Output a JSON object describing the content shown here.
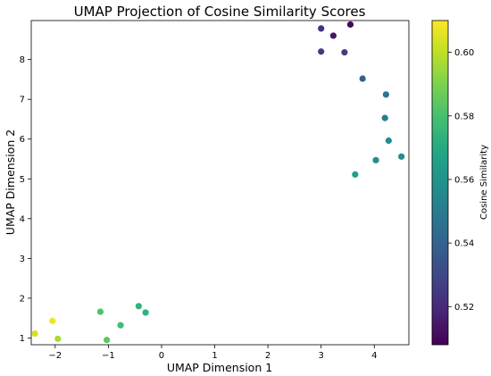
{
  "chart_data": {
    "type": "scatter",
    "title": "UMAP Projection of Cosine Similarity Scores",
    "xlabel": "UMAP Dimension 1",
    "ylabel": "UMAP Dimension 2",
    "xlim": [
      -2.45,
      4.65
    ],
    "ylim": [
      0.83,
      8.98
    ],
    "xticks": [
      -2,
      -1,
      0,
      1,
      2,
      3,
      4
    ],
    "yticks": [
      1,
      2,
      3,
      4,
      5,
      6,
      7,
      8
    ],
    "xtick_labels": [
      "−2",
      "−1",
      "0",
      "1",
      "2",
      "3",
      "4"
    ],
    "ytick_labels": [
      "1",
      "2",
      "3",
      "4",
      "5",
      "6",
      "7",
      "8"
    ],
    "grid": false,
    "colormap": "viridis",
    "colorbar": {
      "label": "Cosine Similarity",
      "range": [
        0.508,
        0.61
      ],
      "ticks": [
        0.52,
        0.54,
        0.56,
        0.58,
        0.6
      ],
      "tick_labels": [
        "0.52",
        "0.54",
        "0.56",
        "0.58",
        "0.60"
      ]
    },
    "points": [
      {
        "x": 3.55,
        "y": 8.88,
        "c": 0.51
      },
      {
        "x": 3.23,
        "y": 8.6,
        "c": 0.514
      },
      {
        "x": 3.0,
        "y": 8.78,
        "c": 0.522
      },
      {
        "x": 3.0,
        "y": 8.2,
        "c": 0.525
      },
      {
        "x": 3.44,
        "y": 8.18,
        "c": 0.526
      },
      {
        "x": 3.78,
        "y": 7.52,
        "c": 0.54
      },
      {
        "x": 4.22,
        "y": 7.12,
        "c": 0.548
      },
      {
        "x": 4.2,
        "y": 6.53,
        "c": 0.551
      },
      {
        "x": 4.27,
        "y": 5.96,
        "c": 0.557
      },
      {
        "x": 4.51,
        "y": 5.56,
        "c": 0.557
      },
      {
        "x": 4.03,
        "y": 5.47,
        "c": 0.558
      },
      {
        "x": 3.64,
        "y": 5.11,
        "c": 0.565
      },
      {
        "x": -0.43,
        "y": 1.8,
        "c": 0.574
      },
      {
        "x": -0.3,
        "y": 1.64,
        "c": 0.573
      },
      {
        "x": -1.15,
        "y": 1.66,
        "c": 0.581
      },
      {
        "x": -0.77,
        "y": 1.32,
        "c": 0.578
      },
      {
        "x": -1.03,
        "y": 0.95,
        "c": 0.584
      },
      {
        "x": -1.95,
        "y": 0.98,
        "c": 0.597
      },
      {
        "x": -2.05,
        "y": 1.43,
        "c": 0.608
      },
      {
        "x": -2.38,
        "y": 1.11,
        "c": 0.604
      }
    ]
  }
}
